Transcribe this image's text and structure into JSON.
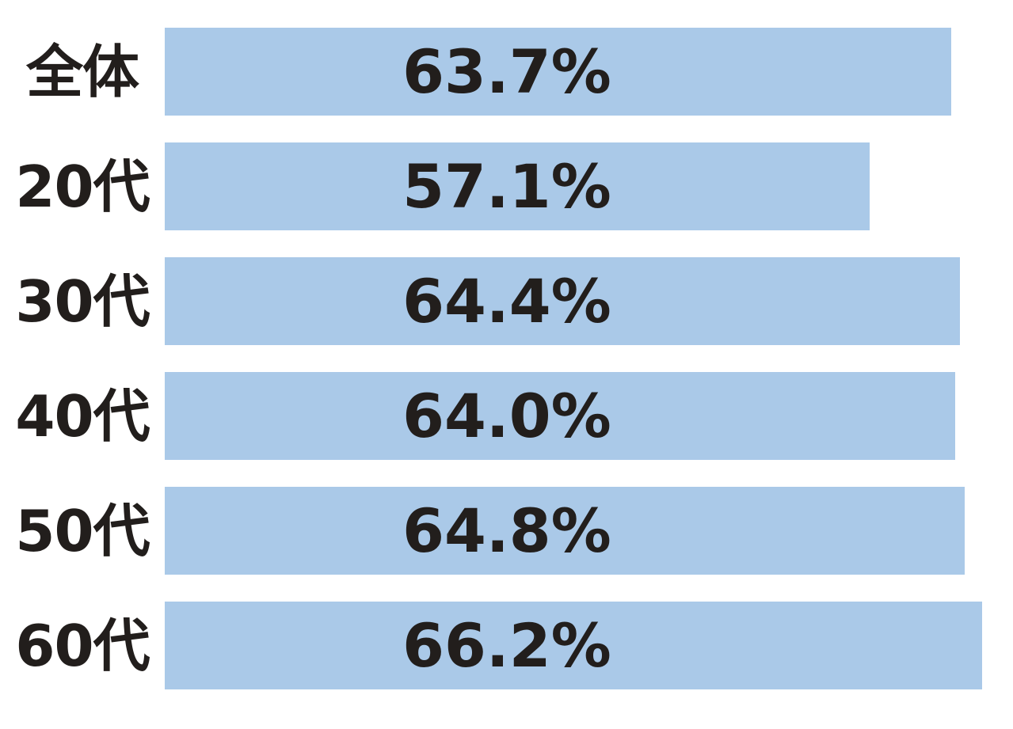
{
  "chart_data": {
    "type": "bar",
    "orientation": "horizontal",
    "title": "",
    "xlabel": "",
    "ylabel": "",
    "categories": [
      "全体",
      "20代",
      "30代",
      "40代",
      "50代",
      "60代"
    ],
    "values": [
      63.7,
      57.1,
      64.4,
      64.0,
      64.8,
      66.2
    ],
    "value_labels": [
      "63.7%",
      "57.1%",
      "64.4%",
      "64.0%",
      "64.8%",
      "66.2%"
    ],
    "xlim": [
      0,
      68.7
    ],
    "grid": false,
    "legend": "none",
    "axis_ticks_visible": false,
    "bar_color": "#aac9e8",
    "text_color": "#221e1c",
    "background_color": "#ffffff"
  }
}
